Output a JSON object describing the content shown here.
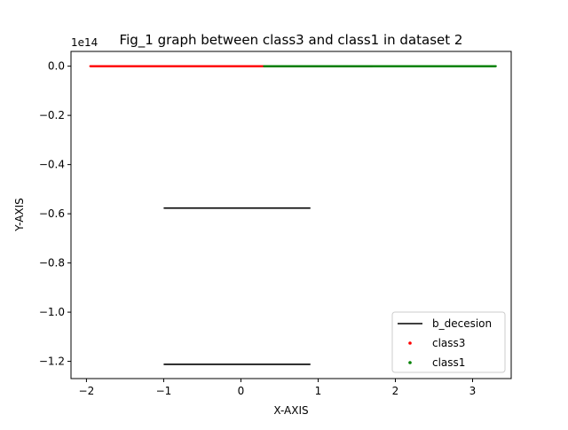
{
  "chart_data": {
    "type": "scatter",
    "title": "Fig_1 graph between class3 and class1 in dataset 2",
    "xlabel": "X-AXIS",
    "ylabel": "Y-AXIS",
    "y_offset_text": "1e14",
    "xlim": [
      -2.2,
      3.5
    ],
    "ylim": [
      -1.27,
      0.06
    ],
    "x_ticks": [
      {
        "value": -2,
        "label": "−2"
      },
      {
        "value": -1,
        "label": "−1"
      },
      {
        "value": 0,
        "label": "0"
      },
      {
        "value": 1,
        "label": "1"
      },
      {
        "value": 2,
        "label": "2"
      },
      {
        "value": 3,
        "label": "3"
      }
    ],
    "y_ticks": [
      {
        "value": 0.0,
        "label": "0.0"
      },
      {
        "value": -0.2,
        "label": "−0.2"
      },
      {
        "value": -0.4,
        "label": "−0.4"
      },
      {
        "value": -0.6,
        "label": "−0.6"
      },
      {
        "value": -0.8,
        "label": "−0.8"
      },
      {
        "value": -1.0,
        "label": "−1.0"
      },
      {
        "value": -1.2,
        "label": "−1.2"
      }
    ],
    "grid": false,
    "legend_position": "lower-right",
    "legend": [
      {
        "name": "b_decesion",
        "marker": "line",
        "color": "#000000"
      },
      {
        "name": "class3",
        "marker": "dot",
        "color": "#ff0000"
      },
      {
        "name": "class1",
        "marker": "dot",
        "color": "#008000"
      }
    ],
    "series": [
      {
        "name": "b_decesion",
        "kind": "line",
        "color": "#000000",
        "segments": [
          {
            "x": [
              -1.0,
              0.9
            ],
            "y": [
              -0.577,
              -0.577
            ]
          },
          {
            "x": [
              -1.0,
              0.9
            ],
            "y": [
              -1.212,
              -1.212
            ]
          }
        ]
      },
      {
        "name": "class3",
        "kind": "scatter",
        "color": "#ff0000",
        "x_range": [
          -1.95,
          1.7
        ],
        "y": 0.0,
        "count": 600
      },
      {
        "name": "class1",
        "kind": "scatter",
        "color": "#008000",
        "x_range": [
          0.3,
          3.3
        ],
        "y": 0.0,
        "count": 600
      }
    ]
  }
}
